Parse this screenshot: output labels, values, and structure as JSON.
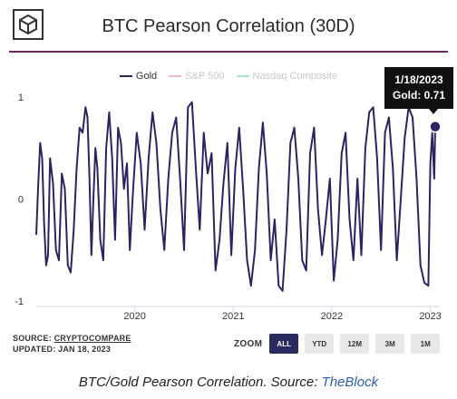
{
  "header": {
    "title": "BTC Pearson Correlation (30D)"
  },
  "legend": [
    {
      "label": "Gold",
      "color": "#2a2560",
      "active": true
    },
    {
      "label": "S&P 500",
      "color": "#f2b8c6",
      "active": false
    },
    {
      "label": "Nasdaq Composite",
      "color": "#a9e3d6",
      "active": false
    }
  ],
  "tooltip": {
    "date": "1/18/2023",
    "value_text": "Gold: 0.71"
  },
  "source": {
    "label": "SOURCE:",
    "link": "CRYPTOCOMPARE",
    "updated": "UPDATED: JAN 18, 2023"
  },
  "zoom": {
    "label": "ZOOM",
    "buttons": [
      "ALL",
      "YTD",
      "12M",
      "3M",
      "1M"
    ],
    "active": "ALL"
  },
  "caption": {
    "prefix": "BTC/Gold Pearson Correlation. Source: ",
    "link": "TheBlock"
  },
  "chart_data": {
    "type": "line",
    "title": "BTC Pearson Correlation (30D)",
    "xlabel": "",
    "ylabel": "",
    "ylim": [
      -1,
      1
    ],
    "yticks": [
      1,
      0,
      -1
    ],
    "xticks": [
      {
        "label": "2020",
        "t": 2020.0
      },
      {
        "label": "2021",
        "t": 2021.0
      },
      {
        "label": "2022",
        "t": 2022.0
      },
      {
        "label": "2023",
        "t": 2023.0
      }
    ],
    "xlim": [
      2019.0,
      2023.05
    ],
    "grid": false,
    "series": [
      {
        "name": "Gold",
        "color": "#2a2560",
        "x": [
          2019.0,
          2019.02,
          2019.04,
          2019.06,
          2019.08,
          2019.1,
          2019.12,
          2019.14,
          2019.17,
          2019.2,
          2019.23,
          2019.26,
          2019.29,
          2019.32,
          2019.35,
          2019.38,
          2019.41,
          2019.44,
          2019.47,
          2019.5,
          2019.52,
          2019.54,
          2019.56,
          2019.58,
          2019.6,
          2019.62,
          2019.65,
          2019.68,
          2019.71,
          2019.74,
          2019.77,
          2019.8,
          2019.83,
          2019.86,
          2019.89,
          2019.92,
          2019.95,
          2019.98,
          2020.02,
          2020.06,
          2020.1,
          2020.14,
          2020.18,
          2020.22,
          2020.26,
          2020.3,
          2020.34,
          2020.38,
          2020.42,
          2020.46,
          2020.5,
          2020.54,
          2020.58,
          2020.62,
          2020.66,
          2020.7,
          2020.74,
          2020.78,
          2020.82,
          2020.86,
          2020.9,
          2020.94,
          2020.98,
          2021.02,
          2021.06,
          2021.1,
          2021.14,
          2021.18,
          2021.22,
          2021.26,
          2021.3,
          2021.34,
          2021.38,
          2021.42,
          2021.46,
          2021.5,
          2021.54,
          2021.58,
          2021.62,
          2021.66,
          2021.7,
          2021.74,
          2021.78,
          2021.82,
          2021.86,
          2021.9,
          2021.94,
          2021.98,
          2022.02,
          2022.06,
          2022.1,
          2022.14,
          2022.18,
          2022.22,
          2022.26,
          2022.3,
          2022.34,
          2022.38,
          2022.42,
          2022.46,
          2022.5,
          2022.54,
          2022.58,
          2022.62,
          2022.66,
          2022.7,
          2022.74,
          2022.78,
          2022.82,
          2022.86,
          2022.9,
          2022.94,
          2022.98,
          2023.0,
          2023.02,
          2023.04,
          2023.05
        ],
        "y": [
          -0.35,
          0.15,
          0.55,
          0.4,
          -0.25,
          -0.65,
          -0.55,
          0.4,
          0.15,
          -0.5,
          -0.6,
          0.25,
          0.1,
          -0.65,
          -0.72,
          -0.3,
          0.3,
          0.7,
          0.65,
          0.9,
          0.8,
          0.2,
          -0.55,
          0.0,
          0.5,
          0.3,
          -0.4,
          -0.6,
          0.5,
          0.85,
          0.4,
          -0.4,
          0.7,
          0.55,
          0.1,
          0.35,
          -0.5,
          0.05,
          0.65,
          0.35,
          -0.3,
          0.4,
          0.85,
          0.55,
          -0.1,
          -0.5,
          0.2,
          0.65,
          0.8,
          0.2,
          -0.5,
          0.9,
          0.95,
          0.3,
          -0.3,
          0.65,
          0.25,
          0.45,
          -0.7,
          -0.4,
          0.15,
          0.55,
          -0.55,
          0.3,
          0.7,
          0.1,
          -0.6,
          -0.85,
          -0.5,
          0.3,
          0.75,
          0.25,
          -0.6,
          -0.2,
          -0.85,
          -0.9,
          -0.3,
          0.55,
          0.7,
          0.2,
          -0.6,
          -0.7,
          0.45,
          0.7,
          -0.1,
          -0.55,
          -0.2,
          0.2,
          -0.8,
          -0.4,
          0.45,
          0.65,
          -0.2,
          -0.6,
          0.2,
          -0.55,
          0.5,
          0.85,
          0.9,
          0.4,
          -0.5,
          0.65,
          0.8,
          0.3,
          -0.6,
          0.0,
          0.6,
          0.9,
          0.8,
          0.2,
          -0.65,
          -0.82,
          -0.85,
          0.35,
          0.65,
          0.2,
          0.71
        ]
      }
    ]
  }
}
